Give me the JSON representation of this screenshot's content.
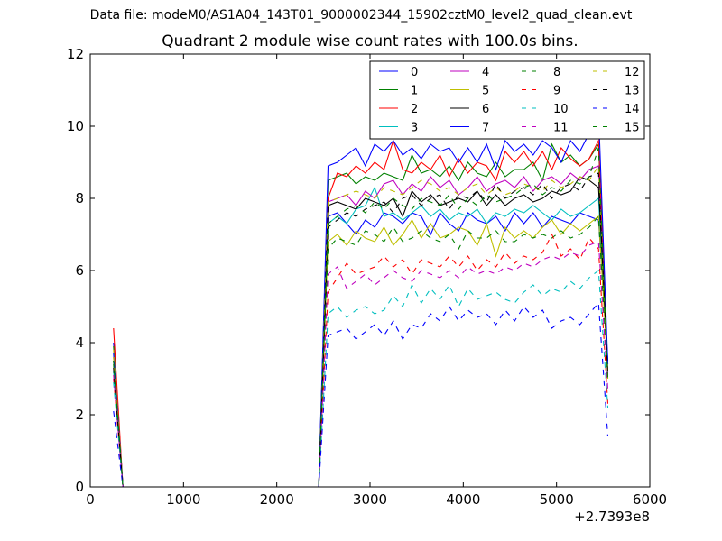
{
  "figure": {
    "suptitle": "Data file: modeM0/AS1A04_143T01_9000002344_15902cztM0_level2_quad_clean.evt",
    "title": "Quadrant 2 module wise count rates with 100.0s bins."
  },
  "chart_data": {
    "type": "line",
    "title": "Quadrant 2 module wise count rates with 100.0s bins.",
    "xlabel": "",
    "ylabel": "",
    "x_offset_label": "+2.7393e8",
    "xlim": [
      0,
      6000
    ],
    "ylim": [
      0,
      12
    ],
    "xticks": [
      0,
      1000,
      2000,
      3000,
      4000,
      5000,
      6000
    ],
    "yticks": [
      0,
      2,
      4,
      6,
      8,
      10,
      12
    ],
    "grid": false,
    "legend": {
      "location": "top-right",
      "columns": 4
    },
    "x": [
      250,
      350,
      450,
      550,
      650,
      750,
      850,
      950,
      1050,
      1150,
      1250,
      1350,
      1450,
      1550,
      1650,
      1750,
      1850,
      1950,
      2050,
      2150,
      2250,
      2350,
      2450,
      2550,
      2650,
      2750,
      2850,
      2950,
      3050,
      3150,
      3250,
      3350,
      3450,
      3550,
      3650,
      3750,
      3850,
      3950,
      4050,
      4150,
      4250,
      4350,
      4450,
      4550,
      4650,
      4750,
      4850,
      4950,
      5050,
      5150,
      5250,
      5350,
      5450,
      5550
    ],
    "series": [
      {
        "name": "0",
        "color": "#0000ff",
        "dash": "solid",
        "values": [
          4.0,
          0,
          0,
          0,
          0,
          0,
          0,
          0,
          0,
          0,
          0,
          0,
          0,
          0,
          0,
          0,
          0,
          0,
          0,
          0,
          0,
          0,
          0,
          7.5,
          7.6,
          7.3,
          7.0,
          7.4,
          7.2,
          7.6,
          7.5,
          7.3,
          7.6,
          7.5,
          7.0,
          7.6,
          7.3,
          7.1,
          7.6,
          7.4,
          7.3,
          7.5,
          7.1,
          7.6,
          7.3,
          7.6,
          7.2,
          7.5,
          7.4,
          7.3,
          7.6,
          7.5,
          7.4,
          3.5
        ]
      },
      {
        "name": "1",
        "color": "#008000",
        "dash": "solid",
        "values": [
          3.9,
          0,
          0,
          0,
          0,
          0,
          0,
          0,
          0,
          0,
          0,
          0,
          0,
          0,
          0,
          0,
          0,
          0,
          0,
          0,
          0,
          0,
          0,
          8.5,
          8.6,
          8.7,
          8.4,
          8.6,
          8.5,
          8.7,
          8.6,
          8.5,
          9.2,
          8.7,
          8.8,
          8.6,
          8.9,
          8.5,
          9.0,
          8.7,
          8.6,
          9.0,
          8.6,
          8.8,
          8.8,
          9.0,
          8.5,
          9.5,
          9.0,
          9.2,
          8.9,
          9.1,
          9.5,
          3.0
        ]
      },
      {
        "name": "2",
        "color": "#ff0000",
        "dash": "solid",
        "values": [
          4.4,
          0,
          0,
          0,
          0,
          0,
          0,
          0,
          0,
          0,
          0,
          0,
          0,
          0,
          0,
          0,
          0,
          0,
          0,
          0,
          0,
          0,
          0,
          8.0,
          8.7,
          8.6,
          8.9,
          8.7,
          9.0,
          8.8,
          9.6,
          8.8,
          8.7,
          9.0,
          8.8,
          9.2,
          8.6,
          9.1,
          8.7,
          9.0,
          8.9,
          8.5,
          9.3,
          9.0,
          9.3,
          8.9,
          9.3,
          8.8,
          9.4,
          9.1,
          8.9,
          9.1,
          9.6,
          3.2
        ]
      },
      {
        "name": "3",
        "color": "#00bfbf",
        "dash": "solid",
        "values": [
          3.2,
          0,
          0,
          0,
          0,
          0,
          0,
          0,
          0,
          0,
          0,
          0,
          0,
          0,
          0,
          0,
          0,
          0,
          0,
          0,
          0,
          0,
          0,
          7.3,
          7.5,
          7.3,
          7.7,
          7.8,
          8.3,
          7.5,
          7.6,
          7.4,
          7.6,
          7.8,
          7.5,
          7.7,
          7.4,
          7.6,
          7.5,
          7.7,
          7.3,
          7.6,
          7.5,
          7.7,
          7.6,
          7.8,
          7.6,
          7.4,
          7.7,
          7.5,
          7.6,
          7.8,
          8.0,
          3.3
        ]
      },
      {
        "name": "4",
        "color": "#bf00bf",
        "dash": "solid",
        "values": [
          3.6,
          0,
          0,
          0,
          0,
          0,
          0,
          0,
          0,
          0,
          0,
          0,
          0,
          0,
          0,
          0,
          0,
          0,
          0,
          0,
          0,
          0,
          0,
          7.9,
          8.0,
          8.1,
          7.8,
          8.2,
          8.0,
          8.4,
          8.5,
          8.1,
          8.4,
          8.2,
          8.6,
          8.3,
          8.5,
          8.1,
          8.3,
          8.6,
          8.2,
          8.4,
          8.5,
          8.3,
          8.6,
          8.2,
          8.5,
          8.6,
          8.4,
          8.7,
          8.5,
          8.8,
          8.9,
          3.1
        ]
      },
      {
        "name": "5",
        "color": "#bfbf00",
        "dash": "solid",
        "values": [
          3.8,
          0,
          0,
          0,
          0,
          0,
          0,
          0,
          0,
          0,
          0,
          0,
          0,
          0,
          0,
          0,
          0,
          0,
          0,
          0,
          0,
          0,
          0,
          6.8,
          7.0,
          6.7,
          7.1,
          6.9,
          6.8,
          7.2,
          6.7,
          7.0,
          7.4,
          6.9,
          7.3,
          6.9,
          7.0,
          7.2,
          7.1,
          6.7,
          7.3,
          6.4,
          7.2,
          6.9,
          7.1,
          6.9,
          7.2,
          7.4,
          7.0,
          7.3,
          7.1,
          7.3,
          7.5,
          3.2
        ]
      },
      {
        "name": "6",
        "color": "#000000",
        "dash": "solid",
        "values": [
          3.5,
          0,
          0,
          0,
          0,
          0,
          0,
          0,
          0,
          0,
          0,
          0,
          0,
          0,
          0,
          0,
          0,
          0,
          0,
          0,
          0,
          0,
          0,
          7.8,
          7.9,
          7.8,
          7.7,
          8.0,
          7.9,
          7.8,
          8.0,
          7.5,
          8.2,
          7.9,
          8.1,
          7.8,
          7.9,
          8.0,
          7.9,
          8.2,
          7.8,
          8.1,
          7.8,
          8.0,
          8.1,
          7.9,
          8.0,
          8.2,
          8.1,
          8.2,
          8.6,
          8.5,
          8.3,
          3.4
        ]
      },
      {
        "name": "7",
        "color": "#0000ff",
        "dash": "solid",
        "values": [
          3.7,
          0,
          0,
          0,
          0,
          0,
          0,
          0,
          0,
          0,
          0,
          0,
          0,
          0,
          0,
          0,
          0,
          0,
          0,
          0,
          0,
          0,
          0,
          8.9,
          9.0,
          9.2,
          9.4,
          8.9,
          9.5,
          9.3,
          9.6,
          9.2,
          9.4,
          9.1,
          9.5,
          9.3,
          9.4,
          9.0,
          9.4,
          9.0,
          9.5,
          8.8,
          9.6,
          9.3,
          9.5,
          9.2,
          9.6,
          9.4,
          9.0,
          9.6,
          9.3,
          9.8,
          10.4,
          3.4
        ]
      },
      {
        "name": "8",
        "color": "#008000",
        "dash": "dashed",
        "values": [
          3.4,
          0,
          0,
          0,
          0,
          0,
          0,
          0,
          0,
          0,
          0,
          0,
          0,
          0,
          0,
          0,
          0,
          0,
          0,
          0,
          0,
          0,
          0,
          6.6,
          6.9,
          6.8,
          6.7,
          7.1,
          7.0,
          6.8,
          7.2,
          6.8,
          6.9,
          7.1,
          6.9,
          6.8,
          7.0,
          6.6,
          7.1,
          6.9,
          6.9,
          7.1,
          6.8,
          6.8,
          7.0,
          6.9,
          7.0,
          6.9,
          7.1,
          6.9,
          7.0,
          7.2,
          7.5,
          2.9
        ]
      },
      {
        "name": "9",
        "color": "#ff0000",
        "dash": "dashed",
        "values": [
          3.0,
          0,
          0,
          0,
          0,
          0,
          0,
          0,
          0,
          0,
          0,
          0,
          0,
          0,
          0,
          0,
          0,
          0,
          0,
          0,
          0,
          0,
          0,
          5.4,
          5.8,
          6.2,
          5.9,
          6.0,
          6.1,
          6.4,
          6.1,
          6.3,
          5.9,
          6.3,
          6.2,
          6.1,
          6.4,
          6.1,
          6.4,
          6.0,
          6.3,
          6.1,
          6.5,
          6.2,
          6.4,
          6.3,
          6.5,
          7.0,
          6.4,
          6.6,
          6.3,
          6.9,
          6.6,
          2.3
        ]
      },
      {
        "name": "10",
        "color": "#00bfbf",
        "dash": "dashed",
        "values": [
          2.9,
          0,
          0,
          0,
          0,
          0,
          0,
          0,
          0,
          0,
          0,
          0,
          0,
          0,
          0,
          0,
          0,
          0,
          0,
          0,
          0,
          0,
          0,
          4.8,
          5.0,
          4.7,
          4.9,
          5.0,
          4.8,
          4.9,
          5.3,
          5.0,
          5.6,
          5.1,
          5.5,
          5.2,
          5.6,
          5.0,
          5.5,
          5.2,
          5.3,
          5.4,
          5.2,
          5.1,
          5.4,
          5.6,
          5.3,
          5.5,
          5.4,
          5.7,
          5.5,
          5.8,
          6.0,
          2.2
        ]
      },
      {
        "name": "11",
        "color": "#bf00bf",
        "dash": "dashed",
        "values": [
          3.1,
          0,
          0,
          0,
          0,
          0,
          0,
          0,
          0,
          0,
          0,
          0,
          0,
          0,
          0,
          0,
          0,
          0,
          0,
          0,
          0,
          0,
          0,
          5.9,
          6.1,
          5.5,
          5.7,
          5.9,
          5.6,
          5.8,
          6.0,
          5.8,
          5.7,
          6.0,
          5.9,
          5.8,
          6.0,
          5.8,
          6.1,
          5.9,
          6.0,
          5.9,
          6.1,
          6.0,
          6.2,
          6.1,
          6.3,
          6.4,
          6.3,
          6.5,
          6.4,
          6.7,
          6.8,
          2.7
        ]
      },
      {
        "name": "12",
        "color": "#bfbf00",
        "dash": "dashed",
        "values": [
          3.6,
          0,
          0,
          0,
          0,
          0,
          0,
          0,
          0,
          0,
          0,
          0,
          0,
          0,
          0,
          0,
          0,
          0,
          0,
          0,
          0,
          0,
          0,
          7.9,
          8.0,
          8.1,
          8.2,
          8.1,
          8.0,
          8.3,
          8.2,
          8.1,
          8.3,
          8.5,
          8.4,
          8.2,
          8.3,
          8.1,
          8.3,
          8.4,
          8.1,
          8.3,
          8.1,
          8.2,
          8.4,
          8.3,
          8.2,
          8.5,
          8.3,
          8.4,
          8.6,
          8.5,
          8.9,
          3.0
        ]
      },
      {
        "name": "13",
        "color": "#000000",
        "dash": "dashed",
        "values": [
          3.3,
          0,
          0,
          0,
          0,
          0,
          0,
          0,
          0,
          0,
          0,
          0,
          0,
          0,
          0,
          0,
          0,
          0,
          0,
          0,
          0,
          0,
          0,
          7.2,
          7.4,
          7.6,
          7.5,
          7.7,
          7.8,
          7.9,
          7.6,
          8.0,
          8.1,
          7.8,
          8.0,
          8.1,
          7.7,
          8.1,
          8.0,
          8.2,
          7.9,
          8.4,
          8.0,
          8.2,
          8.3,
          8.1,
          8.4,
          8.0,
          8.3,
          8.4,
          8.2,
          8.6,
          8.7,
          3.1
        ]
      },
      {
        "name": "14",
        "color": "#0000ff",
        "dash": "dashed",
        "values": [
          2.1,
          0,
          0,
          0,
          0,
          0,
          0,
          0,
          0,
          0,
          0,
          0,
          0,
          0,
          0,
          0,
          0,
          0,
          0,
          0,
          0,
          0,
          0,
          4.2,
          4.3,
          4.4,
          4.1,
          4.3,
          4.5,
          4.2,
          4.6,
          4.1,
          4.5,
          4.4,
          4.8,
          4.6,
          5.0,
          4.6,
          4.9,
          4.7,
          4.8,
          4.5,
          4.9,
          4.6,
          5.0,
          4.7,
          4.9,
          4.4,
          4.6,
          4.7,
          4.5,
          4.8,
          5.1,
          1.4
        ]
      },
      {
        "name": "15",
        "color": "#008000",
        "dash": "dashed",
        "values": [
          3.5,
          0,
          0,
          0,
          0,
          0,
          0,
          0,
          0,
          0,
          0,
          0,
          0,
          0,
          0,
          0,
          0,
          0,
          0,
          0,
          0,
          0,
          0,
          7.3,
          7.5,
          7.7,
          7.8,
          7.6,
          7.9,
          7.7,
          8.0,
          7.8,
          7.7,
          8.0,
          7.9,
          7.8,
          8.1,
          7.7,
          8.0,
          7.8,
          8.1,
          7.9,
          8.0,
          8.1,
          8.3,
          8.4,
          8.1,
          8.3,
          8.2,
          8.5,
          8.4,
          8.6,
          9.4,
          3.0
        ]
      }
    ]
  }
}
